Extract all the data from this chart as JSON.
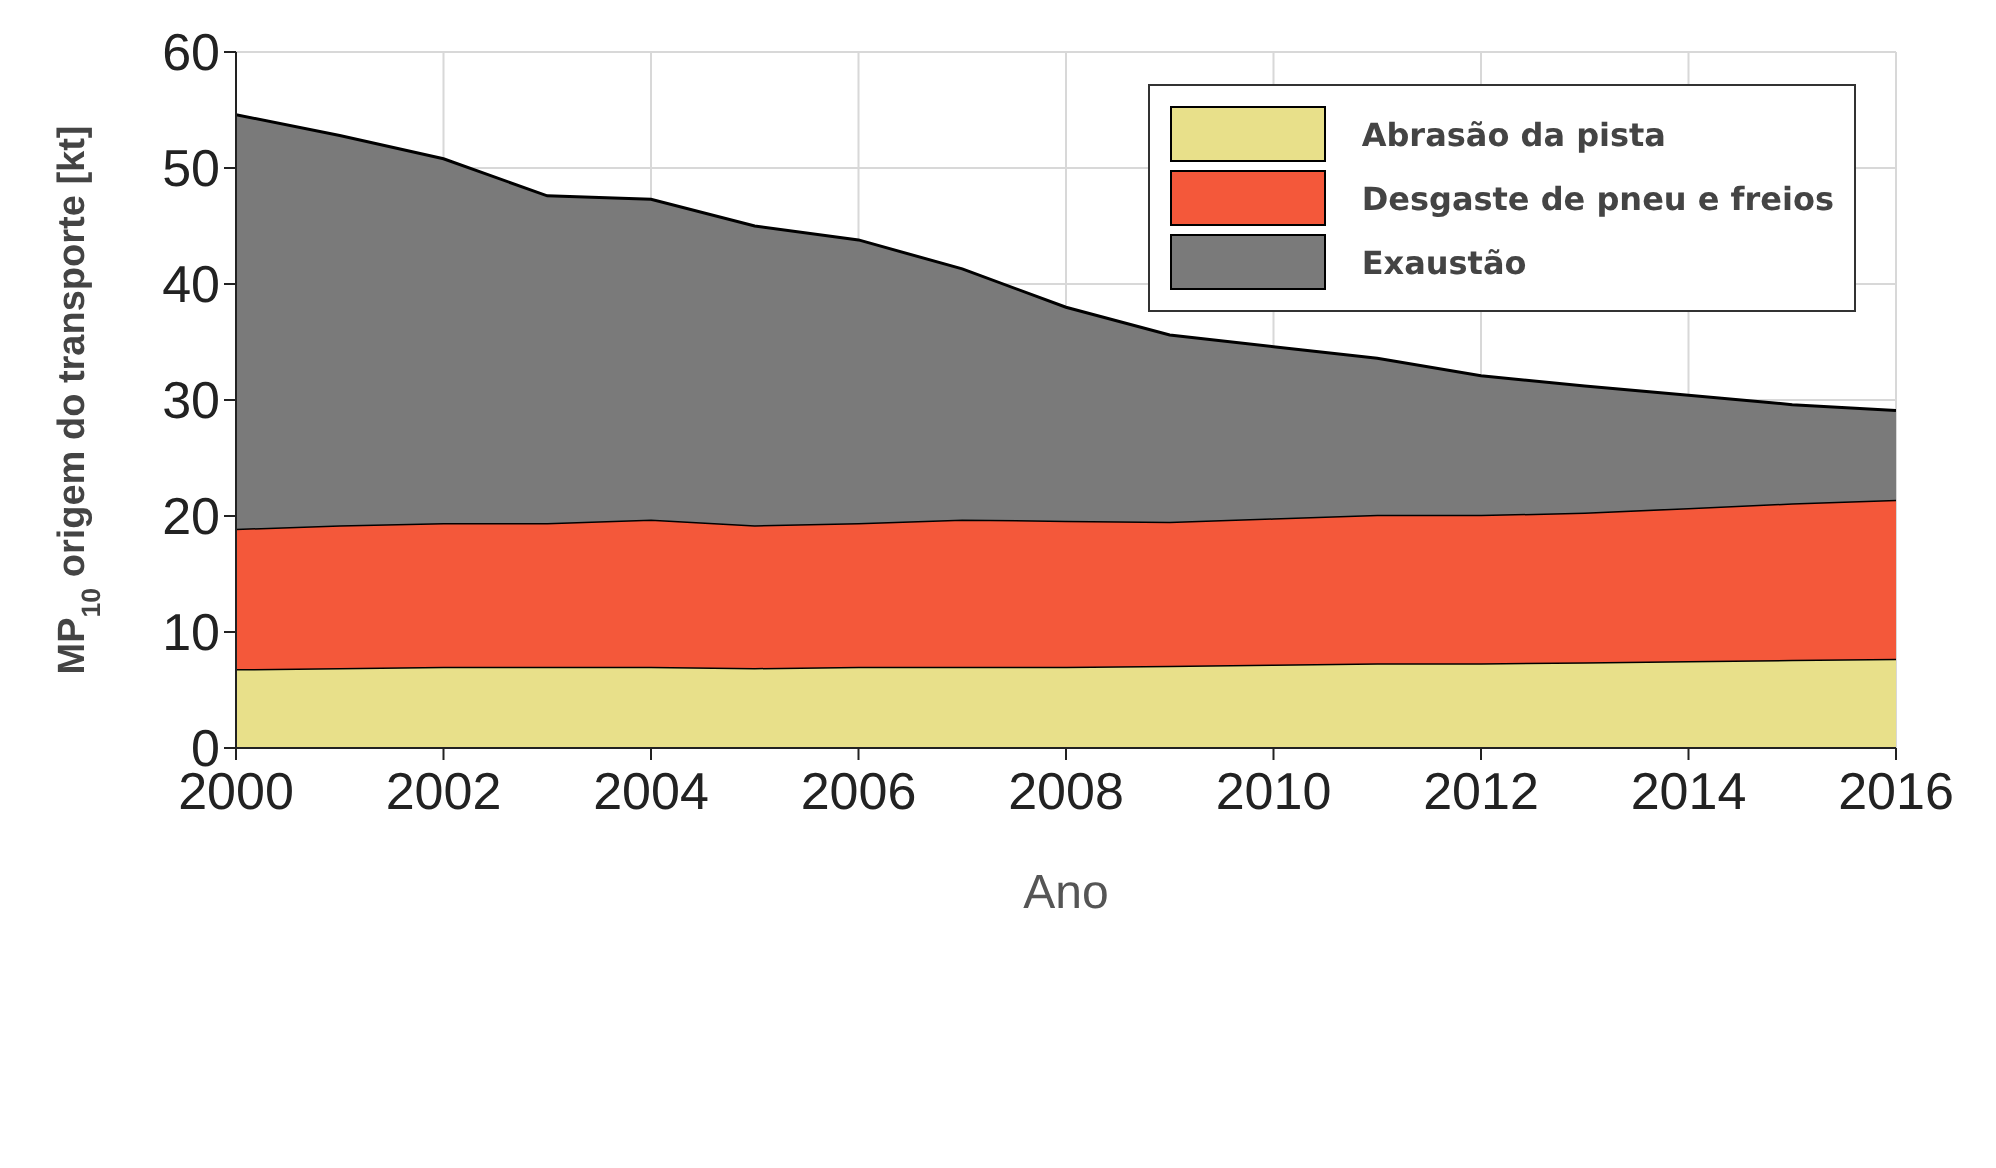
{
  "chart_data": {
    "type": "area",
    "stacked": true,
    "xlabel": "Ano",
    "ylabel": "MP$_{10}$ origem do transporte [kt]",
    "x": [
      2000,
      2001,
      2002,
      2003,
      2004,
      2005,
      2006,
      2007,
      2008,
      2009,
      2010,
      2011,
      2012,
      2013,
      2014,
      2015,
      2016
    ],
    "series": [
      {
        "name": "Abrasão da pista",
        "color": "#e8e08a",
        "values": [
          6.8,
          6.9,
          7.0,
          7.0,
          7.0,
          6.9,
          7.0,
          7.0,
          7.0,
          7.1,
          7.2,
          7.3,
          7.3,
          7.4,
          7.5,
          7.6,
          7.7
        ]
      },
      {
        "name": "Desgaste de pneu e freios",
        "color": "#f4583a",
        "values": [
          12.1,
          12.3,
          12.4,
          12.4,
          12.7,
          12.3,
          12.4,
          12.7,
          12.6,
          12.4,
          12.6,
          12.8,
          12.8,
          12.9,
          13.2,
          13.5,
          13.7
        ]
      },
      {
        "name": "Exaustão",
        "color": "#7a7a7a",
        "values": [
          35.7,
          33.6,
          31.4,
          28.2,
          27.6,
          25.8,
          24.4,
          21.6,
          18.4,
          16.1,
          14.8,
          13.5,
          12.0,
          10.9,
          9.7,
          8.5,
          7.7
        ]
      }
    ],
    "xlim": [
      2000,
      2016
    ],
    "xticks": [
      2000,
      2002,
      2004,
      2006,
      2008,
      2010,
      2012,
      2014,
      2016
    ],
    "ylim": [
      0,
      60
    ],
    "yticks": [
      0,
      10,
      20,
      30,
      40,
      50,
      60
    ],
    "grid": true,
    "legend": "top right"
  }
}
